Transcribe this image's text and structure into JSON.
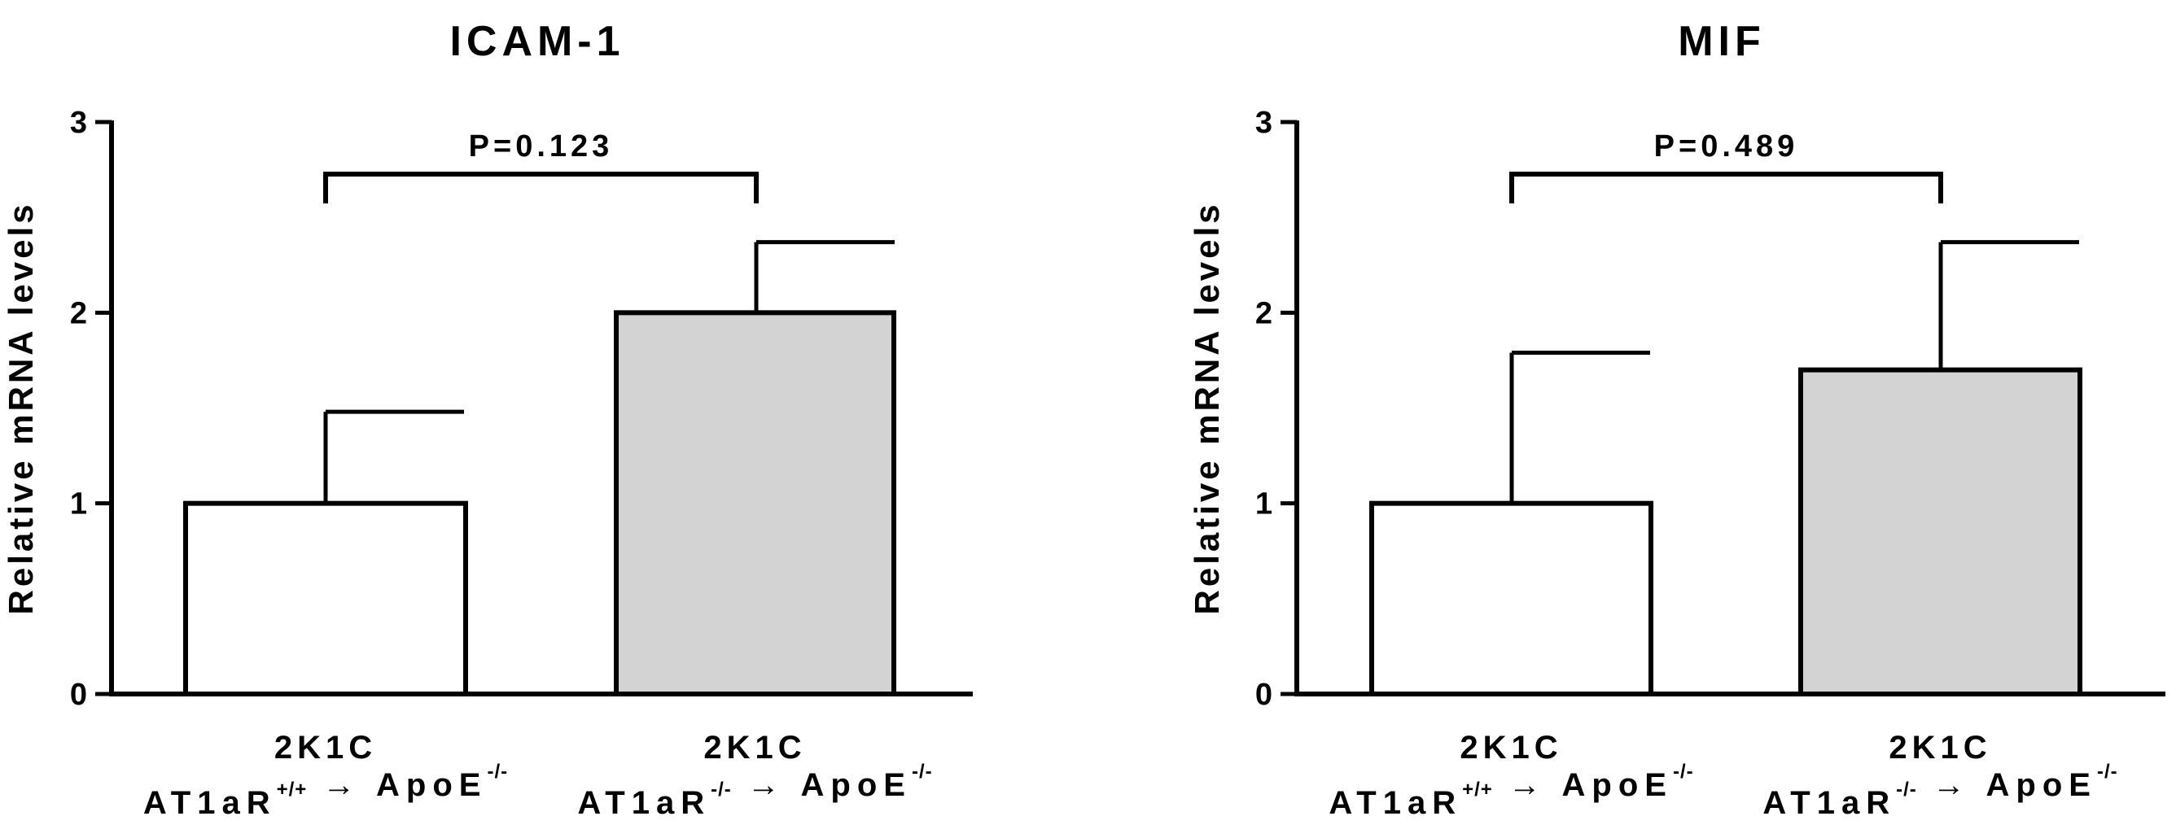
{
  "chart_data": [
    {
      "type": "bar",
      "title": "ICAM-1",
      "ylabel": "Relative mRNA levels",
      "ylim": [
        0,
        3
      ],
      "yticks": [
        "0",
        "1",
        "2",
        "3"
      ],
      "categories": [
        {
          "line1": "2K1C",
          "line2": [
            {
              "text": "AT1aR",
              "sup": "+/+"
            },
            {
              "text": " → ",
              "sup": ""
            },
            {
              "text": "ApoE",
              "sup": "-/-"
            }
          ]
        },
        {
          "line1": "2K1C",
          "line2": [
            {
              "text": "AT1aR",
              "sup": "-/-"
            },
            {
              "text": " → ",
              "sup": ""
            },
            {
              "text": "ApoE",
              "sup": "-/-"
            }
          ]
        }
      ],
      "values": [
        1.0,
        2.0
      ],
      "errors": [
        0.48,
        0.37
      ],
      "bar_colors": [
        "#ffffff",
        "#d3d3d3"
      ],
      "annotation": "P=0.123"
    },
    {
      "type": "bar",
      "title": "MIF",
      "ylabel": "Relative mRNA levels",
      "ylim": [
        0,
        3
      ],
      "yticks": [
        "0",
        "1",
        "2",
        "3"
      ],
      "categories": [
        {
          "line1": "2K1C",
          "line2": [
            {
              "text": "AT1aR",
              "sup": "+/+"
            },
            {
              "text": " → ",
              "sup": ""
            },
            {
              "text": "ApoE",
              "sup": "-/-"
            }
          ]
        },
        {
          "line1": "2K1C",
          "line2": [
            {
              "text": "AT1aR",
              "sup": "-/-"
            },
            {
              "text": " → ",
              "sup": ""
            },
            {
              "text": "ApoE",
              "sup": "-/-"
            }
          ]
        }
      ],
      "values": [
        1.0,
        1.7
      ],
      "errors": [
        0.79,
        0.67
      ],
      "bar_colors": [
        "#ffffff",
        "#d3d3d3"
      ],
      "annotation": "P=0.489"
    }
  ]
}
